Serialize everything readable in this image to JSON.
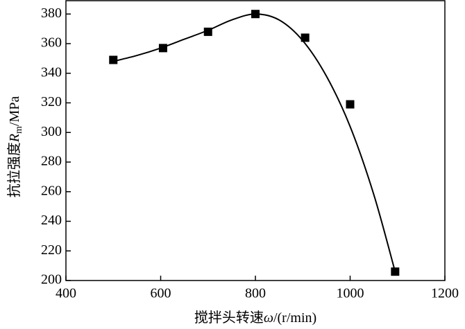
{
  "chart_data": {
    "type": "scatter",
    "xlabel": [
      "搅拌头转速",
      "ω",
      "/(r/min)"
    ],
    "ylabel": [
      "抗拉强度",
      "R",
      "m",
      "/MPa"
    ],
    "x": [
      500,
      605,
      700,
      800,
      905,
      1000,
      1095
    ],
    "series": [
      {
        "color": "#000000",
        "values": [
          349,
          357,
          368,
          380,
          364,
          319,
          206
        ]
      }
    ],
    "fit": {
      "color": "#000000",
      "x": [
        500,
        550,
        600,
        650,
        700,
        750,
        800,
        850,
        900,
        950,
        1000,
        1050,
        1095
      ],
      "values": [
        348,
        352,
        357,
        363,
        369,
        376,
        380,
        376,
        362,
        338,
        304,
        258,
        206
      ]
    },
    "xlim": [
      400,
      1200
    ],
    "xticks": [
      400,
      600,
      800,
      1000,
      1200
    ],
    "ylim": [
      200,
      389
    ],
    "yticks": [
      200,
      220,
      240,
      260,
      280,
      300,
      320,
      340,
      360,
      380
    ]
  }
}
